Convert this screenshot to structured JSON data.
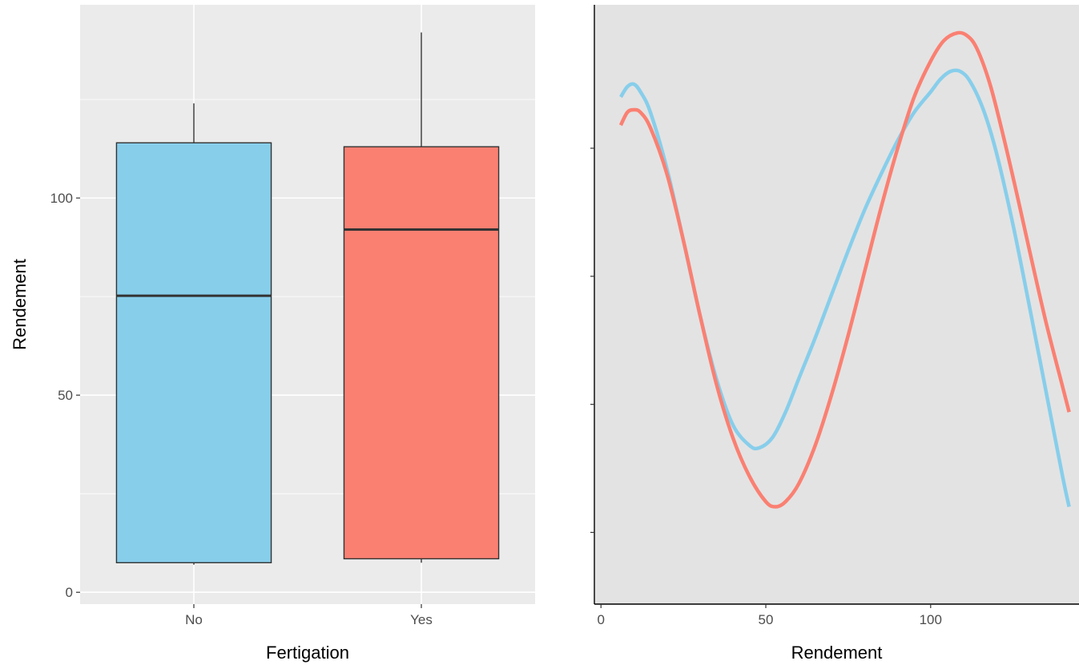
{
  "chart_data": [
    {
      "type": "boxplot",
      "title": "",
      "xlabel": "Fertigation",
      "ylabel": "Rendement",
      "categories": [
        "No",
        "Yes"
      ],
      "ylim": [
        -3,
        149
      ],
      "yticks": [
        0,
        50,
        100
      ],
      "grid": true,
      "legend": "none",
      "boxes": [
        {
          "category": "No",
          "min": 7,
          "q1": 7.5,
          "median": 75.2,
          "q3": 114,
          "max": 124,
          "fill": "#87CEEB"
        },
        {
          "category": "Yes",
          "min": 7.5,
          "q1": 8.5,
          "median": 92,
          "q3": 113,
          "max": 142,
          "fill": "#FA8072"
        }
      ]
    },
    {
      "type": "line",
      "title": "",
      "xlabel": "Rendement",
      "ylabel": "",
      "xlim": [
        -2,
        145
      ],
      "xticks": [
        0,
        50,
        100
      ],
      "grid": false,
      "legend": "none",
      "series": [
        {
          "color": "#87CEEB",
          "x": [
            6,
            8,
            10,
            12,
            15,
            20,
            25,
            30,
            35,
            40,
            45,
            48,
            52,
            56,
            60,
            65,
            70,
            75,
            80,
            85,
            90,
            95,
            100,
            103,
            106,
            109,
            112,
            116,
            120,
            125,
            130,
            135,
            140,
            142
          ],
          "y": [
            0.017,
            0.0174,
            0.0175,
            0.0172,
            0.0164,
            0.0142,
            0.0114,
            0.0085,
            0.006,
            0.0042,
            0.0034,
            0.0033,
            0.0037,
            0.0047,
            0.006,
            0.0076,
            0.0093,
            0.011,
            0.0126,
            0.014,
            0.0153,
            0.0164,
            0.0172,
            0.0177,
            0.018,
            0.018,
            0.0176,
            0.0165,
            0.0148,
            0.012,
            0.0088,
            0.0055,
            0.0022,
            0.001
          ]
        },
        {
          "color": "#FA8072",
          "x": [
            6,
            8,
            10,
            12,
            15,
            20,
            25,
            30,
            35,
            40,
            45,
            50,
            53,
            56,
            60,
            65,
            70,
            75,
            80,
            85,
            90,
            95,
            100,
            104,
            108,
            111,
            114,
            118,
            122,
            126,
            130,
            135,
            140,
            142
          ],
          "y": [
            0.0159,
            0.0164,
            0.0165,
            0.0164,
            0.0158,
            0.014,
            0.0114,
            0.0085,
            0.0058,
            0.0037,
            0.0022,
            0.0012,
            0.001,
            0.0012,
            0.0019,
            0.0034,
            0.0054,
            0.0077,
            0.0102,
            0.0127,
            0.015,
            0.017,
            0.0184,
            0.0192,
            0.0195,
            0.0194,
            0.0189,
            0.0175,
            0.0155,
            0.0133,
            0.011,
            0.0082,
            0.0057,
            0.0047
          ]
        }
      ],
      "ylim": [
        -0.0028,
        0.0206
      ]
    }
  ]
}
